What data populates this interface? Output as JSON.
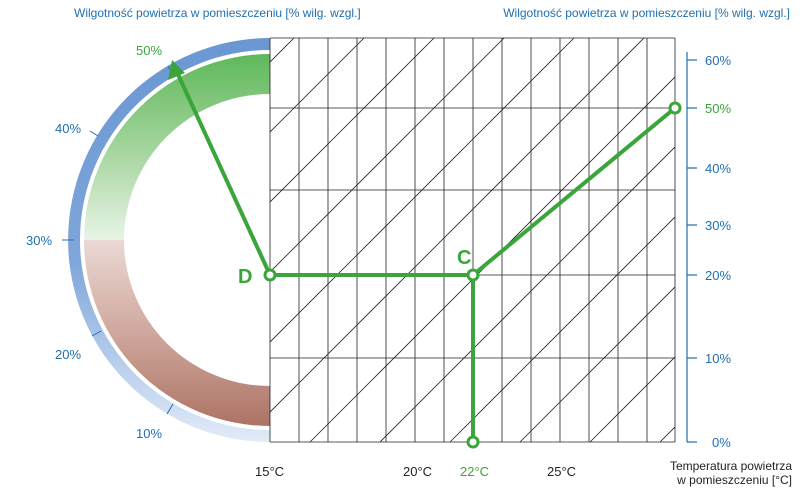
{
  "titles": {
    "left": "Wilgotność powietrza w pomieszczeniu [% wilg. wzgl.]",
    "right": "Wilgotność powietrza w pomieszczeniu [% wilg. wzgl.]"
  },
  "x_axis": {
    "label": "Temperatura powietrza\nw pomieszczeniu [°C]",
    "ticks": [
      "15°C",
      "20°C",
      "22°C",
      "25°C"
    ],
    "highlight": "22°C"
  },
  "right_axis": {
    "ticks": [
      "60%",
      "50%",
      "40%",
      "30%",
      "20%",
      "10%",
      "0%"
    ],
    "highlight": "50%"
  },
  "arc_scale": {
    "ticks": [
      "50%",
      "40%",
      "30%",
      "20%",
      "10%"
    ],
    "highlight": "50%"
  },
  "points": {
    "D": "D",
    "C": "C"
  },
  "colors": {
    "blue": "#1f6fb2",
    "green": "#3aa53a",
    "arc_blue": "#6a97d3",
    "arc_light": "#dfe9f7",
    "band_green": "#6fbf6a",
    "band_brown": "#b57a6c"
  }
}
